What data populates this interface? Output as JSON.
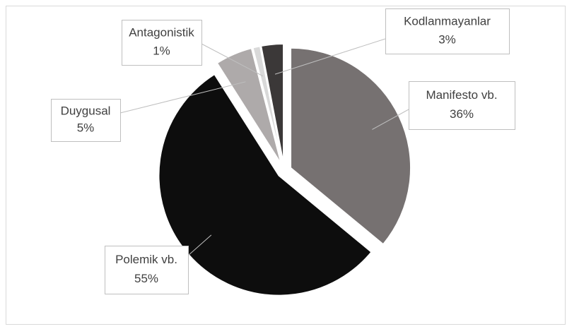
{
  "chart_data": {
    "type": "pie",
    "categories": [
      "Manifesto vb.",
      "Polemik vb.",
      "Duygusal",
      "Antagonistik",
      "Kodlanmayanlar"
    ],
    "values": [
      36,
      55,
      5,
      1,
      3
    ],
    "value_labels": [
      "36%",
      "55%",
      "5%",
      "1%",
      "3%"
    ],
    "colors": [
      "#767171",
      "#0d0d0d",
      "#aeaaaa",
      "#d9d9d9",
      "#3b3838"
    ]
  }
}
